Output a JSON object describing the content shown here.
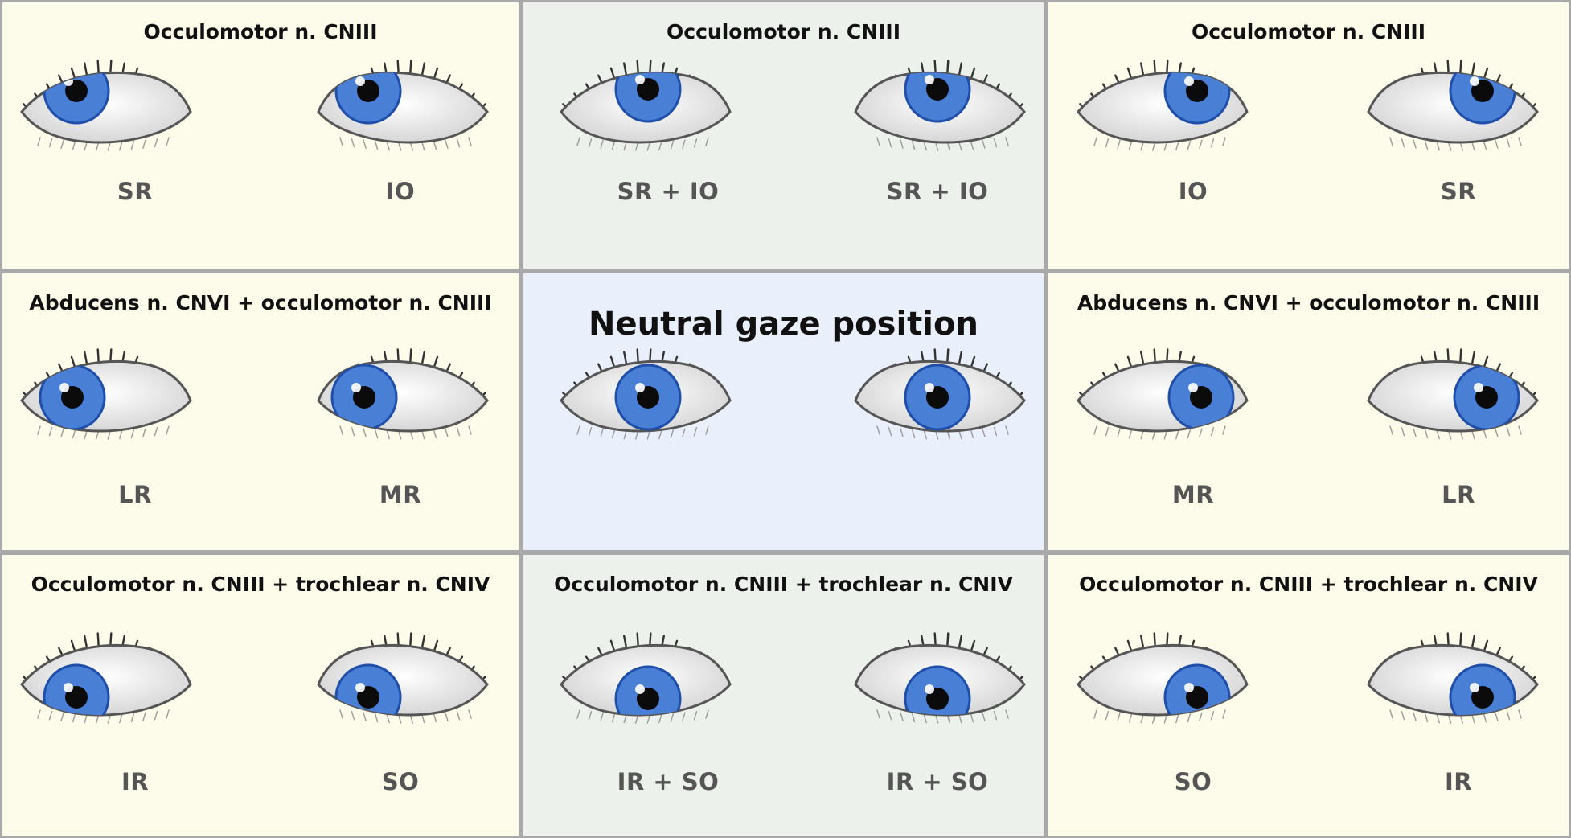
{
  "panels": [
    {
      "title": "Occulomotor n. CNIII",
      "bg": "cream",
      "left_label": "SR",
      "right_label": "IO",
      "gaze": "up-right",
      "title_size": "normal"
    },
    {
      "title": "Occulomotor n. CNIII",
      "bg": "mint",
      "left_label": "SR + IO",
      "right_label": "SR + IO",
      "gaze": "up",
      "title_size": "normal"
    },
    {
      "title": "Occulomotor n. CNIII",
      "bg": "cream",
      "left_label": "IO",
      "right_label": "SR",
      "gaze": "up-left",
      "title_size": "normal"
    },
    {
      "title": "Abducens n. CNVI + occulomotor n. CNIII",
      "bg": "cream",
      "left_label": "LR",
      "right_label": "MR",
      "gaze": "right",
      "title_size": "normal"
    },
    {
      "title": "Neutral gaze position",
      "bg": "blue",
      "left_label": "",
      "right_label": "",
      "gaze": "center",
      "title_size": "big"
    },
    {
      "title": "Abducens n. CNVI + occulomotor n. CNIII",
      "bg": "cream",
      "left_label": "MR",
      "right_label": "LR",
      "gaze": "left",
      "title_size": "normal"
    },
    {
      "title": "Occulomotor n. CNIII + trochlear n. CNIV",
      "bg": "cream",
      "left_label": "IR",
      "right_label": "SO",
      "gaze": "down-right",
      "title_size": "normal"
    },
    {
      "title": "Occulomotor n. CNIII + trochlear n. CNIV",
      "bg": "mint",
      "left_label": "IR + SO",
      "right_label": "IR + SO",
      "gaze": "down",
      "title_size": "normal"
    },
    {
      "title": "Occulomotor n. CNIII + trochlear n. CNIV",
      "bg": "cream",
      "left_label": "SO",
      "right_label": "IR",
      "gaze": "down-left",
      "title_size": "normal"
    }
  ],
  "colors": {
    "iris": "#4a7fd6",
    "iris_dark": "#1f4fa8",
    "pupil": "#0b0b0b",
    "sclera": "#ffffff",
    "lash": "#333333"
  }
}
